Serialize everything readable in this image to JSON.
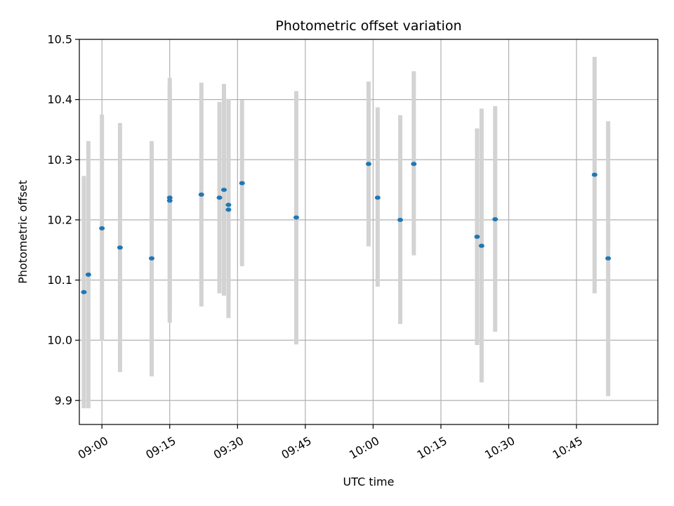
{
  "chart_data": {
    "type": "scatter",
    "title": "Photometric offset variation",
    "xlabel": "UTC time",
    "ylabel": "Photometric offset",
    "x_axis_type": "time",
    "xlim": [
      "08:55",
      "11:03"
    ],
    "ylim": [
      9.86,
      10.5
    ],
    "x_ticks": [
      "09:00",
      "09:15",
      "09:30",
      "09:45",
      "10:00",
      "10:15",
      "10:30",
      "10:45"
    ],
    "y_ticks": [
      "9.9",
      "10.0",
      "10.1",
      "10.2",
      "10.3",
      "10.4",
      "10.5"
    ],
    "grid": true,
    "marker_color": "#1f77b4",
    "errorbar_color": "#d3d3d3",
    "points": [
      {
        "x": "08:56",
        "y": 10.08,
        "lo": 9.887,
        "hi": 10.273
      },
      {
        "x": "08:57",
        "y": 10.109,
        "lo": 9.887,
        "hi": 10.331
      },
      {
        "x": "09:00",
        "y": 10.186,
        "lo": 9.999,
        "hi": 10.375
      },
      {
        "x": "09:04",
        "y": 10.154,
        "lo": 9.947,
        "hi": 10.361
      },
      {
        "x": "09:11",
        "y": 10.136,
        "lo": 9.94,
        "hi": 10.331
      },
      {
        "x": "09:15",
        "y": 10.237,
        "lo": 10.049,
        "hi": 10.424
      },
      {
        "x": "09:15",
        "y": 10.232,
        "lo": 10.029,
        "hi": 10.436
      },
      {
        "x": "09:22",
        "y": 10.242,
        "lo": 10.056,
        "hi": 10.428
      },
      {
        "x": "09:26",
        "y": 10.237,
        "lo": 10.078,
        "hi": 10.396
      },
      {
        "x": "09:27",
        "y": 10.25,
        "lo": 10.074,
        "hi": 10.426
      },
      {
        "x": "09:28",
        "y": 10.217,
        "lo": 10.037,
        "hi": 10.398
      },
      {
        "x": "09:28",
        "y": 10.225,
        "lo": 10.049,
        "hi": 10.401
      },
      {
        "x": "09:31",
        "y": 10.261,
        "lo": 10.123,
        "hi": 10.399
      },
      {
        "x": "09:43",
        "y": 10.204,
        "lo": 9.993,
        "hi": 10.414
      },
      {
        "x": "09:59",
        "y": 10.293,
        "lo": 10.156,
        "hi": 10.43
      },
      {
        "x": "10:01",
        "y": 10.237,
        "lo": 10.089,
        "hi": 10.387
      },
      {
        "x": "10:06",
        "y": 10.2,
        "lo": 10.027,
        "hi": 10.374
      },
      {
        "x": "10:09",
        "y": 10.293,
        "lo": 10.141,
        "hi": 10.447
      },
      {
        "x": "10:23",
        "y": 10.172,
        "lo": 9.992,
        "hi": 10.352
      },
      {
        "x": "10:24",
        "y": 10.157,
        "lo": 9.93,
        "hi": 10.385
      },
      {
        "x": "10:27",
        "y": 10.201,
        "lo": 10.014,
        "hi": 10.389
      },
      {
        "x": "10:49",
        "y": 10.275,
        "lo": 10.078,
        "hi": 10.471
      },
      {
        "x": "10:52",
        "y": 10.136,
        "lo": 9.907,
        "hi": 10.364
      }
    ]
  }
}
